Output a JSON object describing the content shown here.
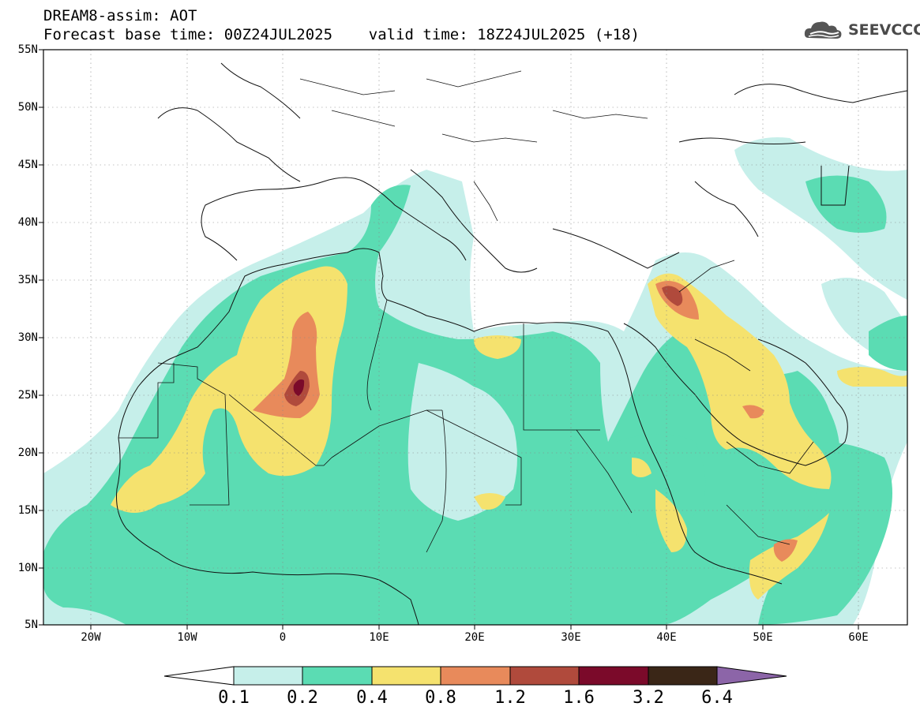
{
  "header": {
    "line1": "DREAM8-assim: AOT",
    "line2": "Forecast base time: 00Z24JUL2025    valid time: 18Z24JUL2025 (+18)"
  },
  "logo": {
    "text": "SEEVCCC",
    "icon": "cloud-logo-icon"
  },
  "map": {
    "variable": "AOT",
    "lat_labels": [
      "55N",
      "50N",
      "45N",
      "40N",
      "35N",
      "30N",
      "25N",
      "20N",
      "15N",
      "10N",
      "5N"
    ],
    "lon_labels": [
      "20W",
      "10W",
      "0",
      "10E",
      "20E",
      "30E",
      "40E",
      "50E",
      "60E"
    ],
    "extent": {
      "lon": [
        -25,
        65
      ],
      "lat": [
        5,
        55
      ]
    }
  },
  "colorbar": {
    "thresholds": [
      "0.1",
      "0.2",
      "0.4",
      "0.8",
      "1.2",
      "1.6",
      "3.2",
      "6.4"
    ],
    "colors": [
      "#ffffff",
      "#c6efea",
      "#5bdcb3",
      "#f5e26e",
      "#e88a5b",
      "#b04a3c",
      "#7b0a2a",
      "#3a2617",
      "#8c65a8"
    ]
  }
}
